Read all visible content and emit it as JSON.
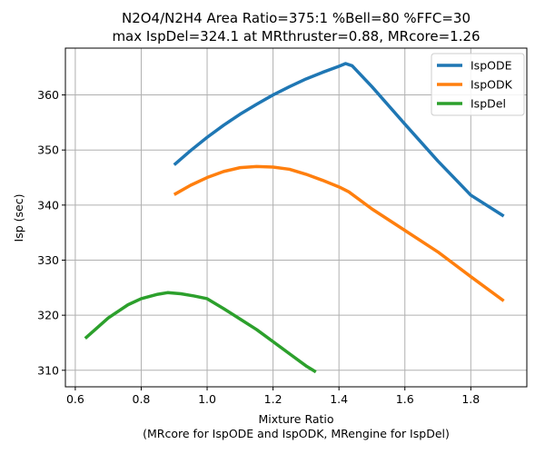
{
  "chart_data": {
    "type": "line",
    "title": "N2O4/N2H4 Area Ratio=375:1 %Bell=80 %FFC=30",
    "subtitle": "max IspDel=324.1 at MRthruster=0.88, MRcore=1.26",
    "xlabel": "Mixture Ratio",
    "xlabel2": "(MRcore for IspODE and IspODK, MRengine for IspDel)",
    "ylabel": "Isp (sec)",
    "xlim": [
      0.57,
      1.97
    ],
    "ylim": [
      307,
      368.5
    ],
    "xticks": [
      0.6,
      0.8,
      1.0,
      1.2,
      1.4,
      1.6,
      1.8
    ],
    "xtick_labels": [
      "0.6",
      "0.8",
      "1.0",
      "1.2",
      "1.4",
      "1.6",
      "1.8"
    ],
    "yticks": [
      310,
      320,
      330,
      340,
      350,
      360
    ],
    "ytick_labels": [
      "310",
      "320",
      "330",
      "340",
      "350",
      "360"
    ],
    "grid": true,
    "legend_position": "top-right",
    "series": [
      {
        "name": "IspODE",
        "color": "#1f77b4",
        "x": [
          0.9,
          0.95,
          1.0,
          1.05,
          1.1,
          1.15,
          1.2,
          1.25,
          1.3,
          1.35,
          1.4,
          1.42,
          1.44,
          1.5,
          1.6,
          1.7,
          1.8,
          1.9
        ],
        "y": [
          347.3,
          349.9,
          352.3,
          354.5,
          356.5,
          358.3,
          360.0,
          361.5,
          362.9,
          364.1,
          365.2,
          365.7,
          365.3,
          361.5,
          354.7,
          348.0,
          341.8,
          338.0
        ]
      },
      {
        "name": "IspODK",
        "color": "#ff7f0e",
        "x": [
          0.9,
          0.95,
          1.0,
          1.05,
          1.1,
          1.15,
          1.2,
          1.25,
          1.3,
          1.35,
          1.4,
          1.43,
          1.5,
          1.6,
          1.7,
          1.8,
          1.9
        ],
        "y": [
          341.9,
          343.6,
          345.0,
          346.1,
          346.8,
          347.0,
          346.9,
          346.5,
          345.6,
          344.5,
          343.3,
          342.4,
          339.3,
          335.4,
          331.5,
          327.0,
          322.6
        ]
      },
      {
        "name": "IspDel",
        "color": "#2ca02c",
        "x": [
          0.63,
          0.7,
          0.76,
          0.8,
          0.85,
          0.88,
          0.92,
          0.96,
          1.0,
          1.05,
          1.1,
          1.15,
          1.2,
          1.25,
          1.3,
          1.33
        ],
        "y": [
          315.8,
          319.5,
          321.9,
          323.0,
          323.8,
          324.1,
          323.9,
          323.5,
          323.0,
          321.2,
          319.3,
          317.4,
          315.2,
          313.0,
          310.8,
          309.7
        ]
      }
    ]
  }
}
